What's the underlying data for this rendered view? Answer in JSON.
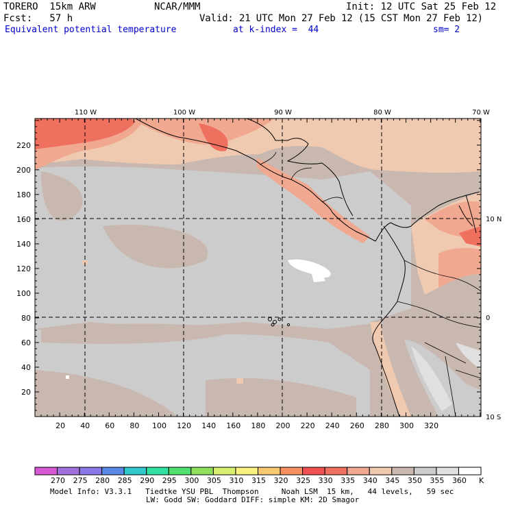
{
  "header": {
    "model_name": "TORERO  15km ARW",
    "org": "NCAR/MMM",
    "init": "Init: 12 UTC Sat 25 Feb 12",
    "fcst": "Fcst:   57 h",
    "valid": "Valid: 21 UTC Mon 27 Feb 12 (15 CST Mon 27 Feb 12)",
    "field": "Equivalent potential temperature",
    "level": "at k-index =  44",
    "smooth": "sm= 2"
  },
  "map": {
    "lon_labels": [
      "110 W",
      "100 W",
      "90 W",
      "80 W",
      "70 W"
    ],
    "lat_labels": [
      "10 N",
      "0",
      "10 S"
    ],
    "x_ticks": [
      "20",
      "40",
      "60",
      "80",
      "100",
      "120",
      "140",
      "160",
      "180",
      "200",
      "220",
      "240",
      "260",
      "280",
      "300",
      "320"
    ],
    "y_ticks": [
      "20",
      "40",
      "60",
      "80",
      "100",
      "120",
      "140",
      "160",
      "180",
      "200",
      "220"
    ]
  },
  "colorbar": {
    "labels": [
      "270",
      "275",
      "280",
      "285",
      "290",
      "295",
      "300",
      "305",
      "310",
      "315",
      "320",
      "325",
      "330",
      "335",
      "340",
      "345",
      "350",
      "355",
      "360"
    ],
    "unit": "K",
    "colors": [
      "#d658d2",
      "#a070dc",
      "#8a78e8",
      "#5a8ae6",
      "#30c8c8",
      "#30e0a0",
      "#50e070",
      "#90e060",
      "#d8f070",
      "#f8f080",
      "#f8c870",
      "#f89060",
      "#f05050",
      "#f07060",
      "#f0a890",
      "#f0cab0",
      "#c8b8b0",
      "#cccccc",
      "#e0e0e0",
      "#ffffff"
    ]
  },
  "footer": {
    "line1": "Model Info: V3.3.1   Tiedtke YSU PBL  Thompson     Noah LSM  15 km,   44 levels,   59 sec",
    "line2": "LW: Godd SW: Goddard DIFF: simple KM: 2D Smagor"
  }
}
